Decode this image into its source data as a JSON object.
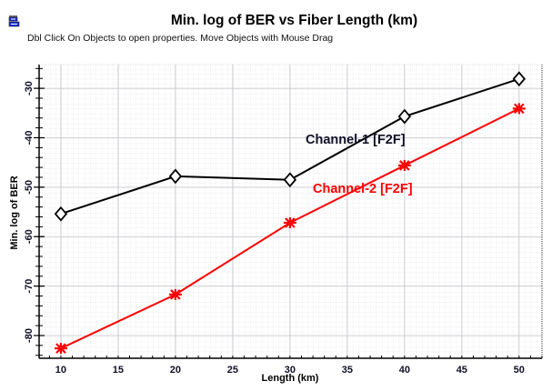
{
  "window": {
    "icon": "chart-window-icon",
    "hint": "Dbl Click On Objects to open properties.  Move Objects with Mouse Drag"
  },
  "chart_data": {
    "type": "line",
    "title": "Min. log of BER vs Fiber Length (km)",
    "xlabel": "Length (km)",
    "ylabel": "Min. log of BER",
    "xlim": [
      8.1,
      52.0
    ],
    "ylim": [
      -84.6,
      -25.2
    ],
    "x_ticks": [
      10,
      15,
      20,
      25,
      30,
      35,
      40,
      45,
      50
    ],
    "x_tick_labels": [
      "10",
      "15",
      "20",
      "25",
      "30",
      "35",
      "40",
      "45",
      "50"
    ],
    "y_ticks": [
      -30,
      -40,
      -50,
      -60,
      -70,
      -80
    ],
    "y_tick_labels": [
      "-30",
      "-40",
      "-50",
      "-60",
      "-70",
      "-80"
    ],
    "grid": true,
    "x": [
      10,
      20,
      30,
      40,
      50
    ],
    "series": [
      {
        "name": "Channel-1 [F2F]",
        "color": "#000000",
        "label_color": "#101028",
        "marker": "diamond",
        "values": [
          -55.4,
          -47.8,
          -48.5,
          -35.7,
          -28.1
        ]
      },
      {
        "name": "Channel-2 [F2F]",
        "color": "#ff0000",
        "label_color": "#ff0000",
        "marker": "asterisk",
        "values": [
          -82.6,
          -71.7,
          -57.2,
          -45.6,
          -34.1
        ]
      }
    ]
  }
}
